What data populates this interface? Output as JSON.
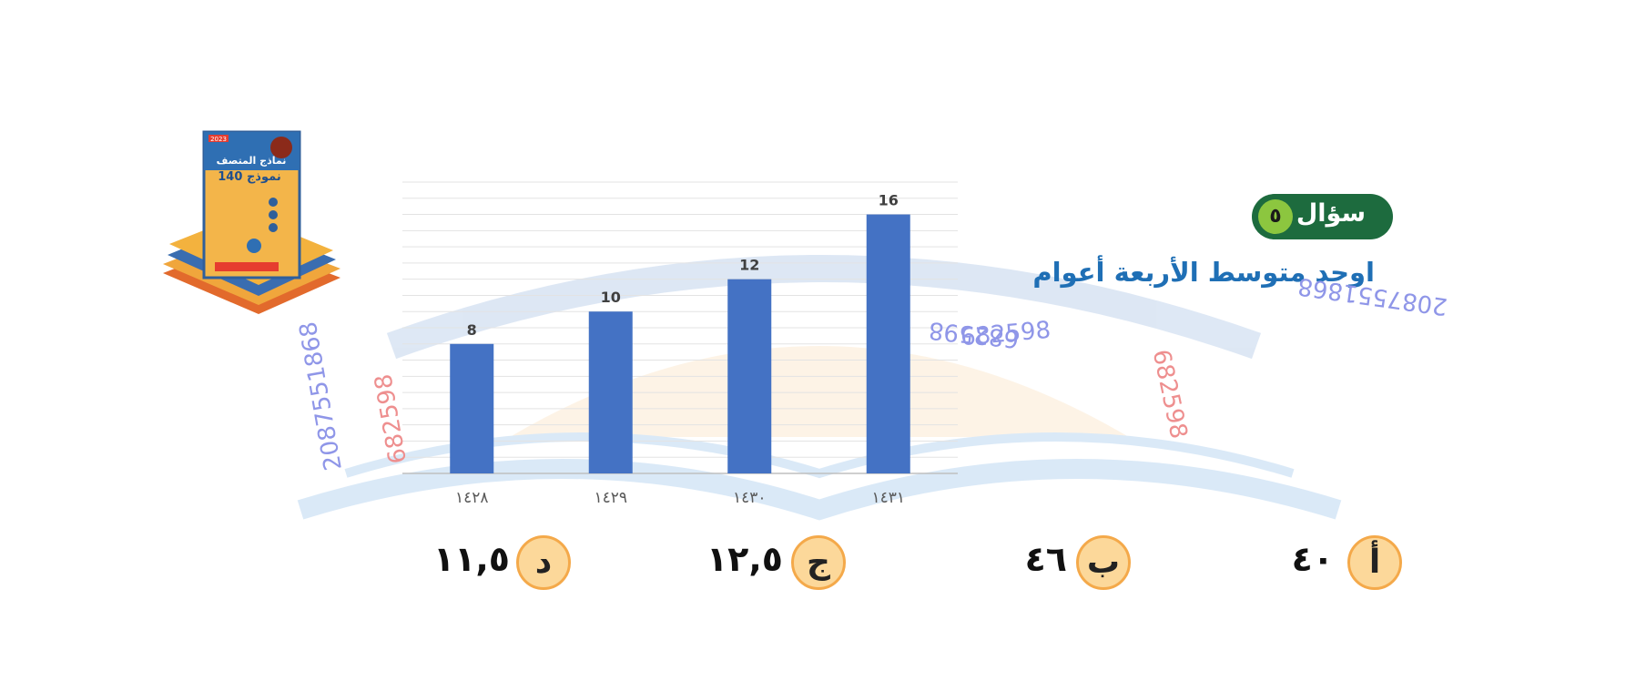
{
  "question": {
    "badge_label": "سؤال",
    "number": "٥",
    "text": "اوجد متوسط الأربعة أعوام"
  },
  "options": [
    {
      "letter": "أ",
      "value": "٤٠"
    },
    {
      "letter": "ب",
      "value": "٤٦"
    },
    {
      "letter": "ج",
      "value": "١٢,٥"
    },
    {
      "letter": "د",
      "value": "١١,٥"
    }
  ],
  "book": {
    "year": "2023",
    "title": "نماذج المتصف",
    "models": "140 نموذج"
  },
  "watermarks": [
    "2087551868",
    "682598",
    "2087551868",
    "682598",
    "682598",
    "682598"
  ],
  "colors": {
    "bar": "#4472c4",
    "badge": "#1d6b3e",
    "badge_number": "#8cc63f",
    "question_text": "#1f6fb5",
    "option_circle": "#fcd89a"
  },
  "chart_data": {
    "type": "bar",
    "categories": [
      "١٤٢٨",
      "١٤٢٩",
      "١٤٣٠",
      "١٤٣١"
    ],
    "values": [
      8,
      10,
      12,
      16
    ],
    "data_labels": [
      "8",
      "10",
      "12",
      "16"
    ],
    "ylim": [
      0,
      18
    ],
    "grid": true,
    "gridline_step": 1,
    "y_tick_labels_shown": false,
    "title": "",
    "xlabel": "",
    "ylabel": ""
  }
}
